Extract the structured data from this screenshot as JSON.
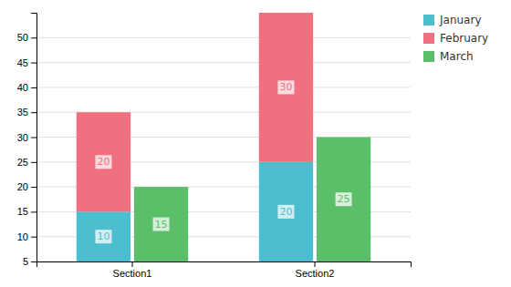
{
  "chart_data": {
    "type": "bar",
    "categories": [
      "Section1",
      "Section2"
    ],
    "series": [
      {
        "name": "January",
        "color": "#4BBFCF",
        "values": [
          10,
          20
        ],
        "stacked": true
      },
      {
        "name": "February",
        "color": "#F07080",
        "values": [
          20,
          30
        ],
        "stacked": true
      },
      {
        "name": "March",
        "color": "#5BBF6A",
        "values": [
          15,
          25
        ]
      }
    ],
    "ylim": [
      5,
      55
    ],
    "yticks": [
      5,
      10,
      15,
      20,
      25,
      30,
      35,
      40,
      45,
      50
    ],
    "grid": true,
    "legend": "upper right",
    "data_labels": true
  }
}
